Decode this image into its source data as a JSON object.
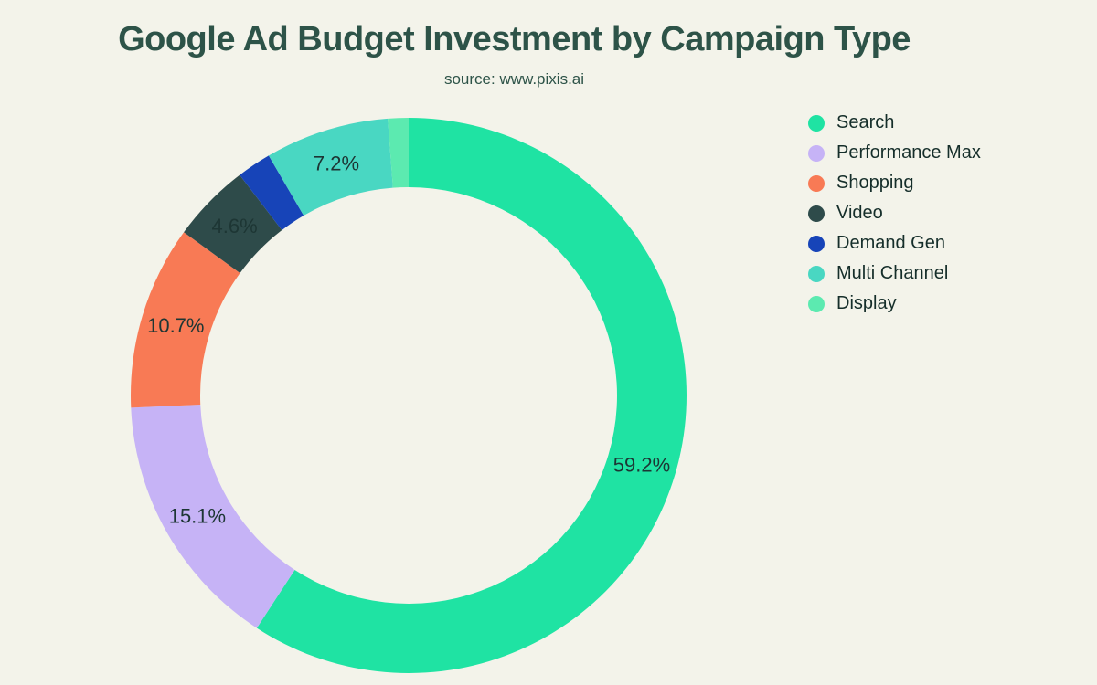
{
  "page": {
    "background_color": "#f3f3ea"
  },
  "chart_data": {
    "type": "pie",
    "variant": "donut",
    "title": "Google Ad Budget Investment by Campaign Type",
    "subtitle": "source: www.pixis.ai",
    "unit": "%",
    "start_angle_deg": 0,
    "direction": "clockwise",
    "legend_position": "right",
    "title_color": "#2d5348",
    "subtitle_color": "#2d5348",
    "label_color": "#1d3634",
    "legend_text_color": "#152e2a",
    "slices": [
      {
        "name": "Search",
        "value": 59.2,
        "label": "59.2%",
        "color": "#1fe3a3"
      },
      {
        "name": "Performance Max",
        "value": 15.1,
        "label": "15.1%",
        "color": "#c6b3f6"
      },
      {
        "name": "Shopping",
        "value": 10.7,
        "label": "10.7%",
        "color": "#f87a55"
      },
      {
        "name": "Video",
        "value": 4.6,
        "label": "4.6%",
        "color": "#2e4b4a"
      },
      {
        "name": "Demand Gen",
        "value": 2.0,
        "label": null,
        "color": "#1744b8"
      },
      {
        "name": "Multi Channel",
        "value": 7.2,
        "label": "7.2%",
        "color": "#49d7c2"
      },
      {
        "name": "Display",
        "value": 1.2,
        "label": null,
        "color": "#5ceab0"
      }
    ]
  }
}
